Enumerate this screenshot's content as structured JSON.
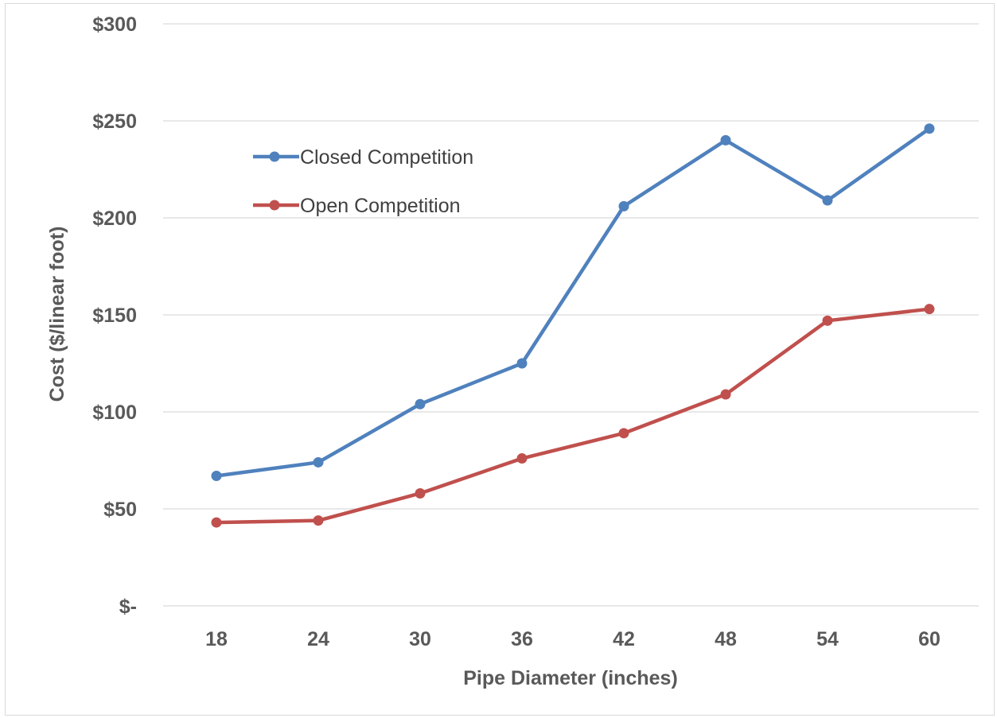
{
  "chart_data": {
    "type": "line",
    "title": "",
    "xlabel": "Pipe Diameter (inches)",
    "ylabel": "Cost ($/linear foot)",
    "categories": [
      "18",
      "24",
      "30",
      "36",
      "42",
      "48",
      "54",
      "60"
    ],
    "ylim": [
      0,
      300
    ],
    "yticks": [
      {
        "value": 0,
        "label": "$-"
      },
      {
        "value": 50,
        "label": "$50"
      },
      {
        "value": 100,
        "label": "$100"
      },
      {
        "value": 150,
        "label": "$150"
      },
      {
        "value": 200,
        "label": "$200"
      },
      {
        "value": 250,
        "label": "$250"
      },
      {
        "value": 300,
        "label": "$300"
      }
    ],
    "grid": true,
    "legend_position": "top-left",
    "series": [
      {
        "name": "Closed Competition",
        "color": "#4f81bd",
        "values": [
          67,
          74,
          104,
          125,
          206,
          240,
          209,
          246
        ]
      },
      {
        "name": "Open Competition",
        "color": "#c0504d",
        "values": [
          43,
          44,
          58,
          76,
          89,
          109,
          147,
          153
        ]
      }
    ]
  }
}
